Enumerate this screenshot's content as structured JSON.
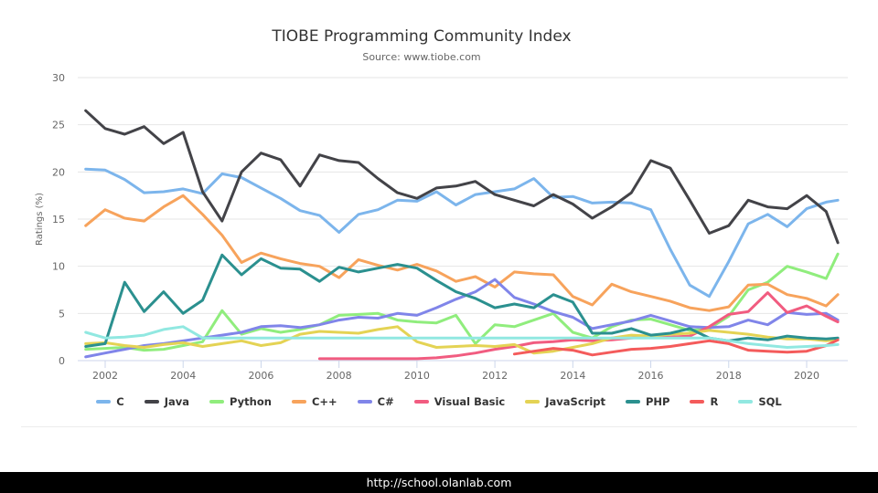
{
  "chart_data": {
    "type": "line",
    "title": "TIOBE Programming Community Index",
    "subtitle": "Source: www.tiobe.com",
    "xlabel": "",
    "ylabel": "Ratings (%)",
    "ylim": [
      0,
      30
    ],
    "xlim": [
      2001.5,
      2020.9
    ],
    "yticks": [
      "0",
      "5",
      "10",
      "15",
      "20",
      "25",
      "30"
    ],
    "xticks": [
      "2002",
      "2004",
      "2006",
      "2008",
      "2010",
      "2012",
      "2014",
      "2016",
      "2018",
      "2020"
    ],
    "grid": true,
    "legend_position": "bottom",
    "x": [
      2001.5,
      2002,
      2002.5,
      2003,
      2003.5,
      2004,
      2004.5,
      2005,
      2005.5,
      2006,
      2006.5,
      2007,
      2007.5,
      2008,
      2008.5,
      2009,
      2009.5,
      2010,
      2010.5,
      2011,
      2011.5,
      2012,
      2012.5,
      2013,
      2013.5,
      2014,
      2014.5,
      2015,
      2015.5,
      2016,
      2016.5,
      2017,
      2017.5,
      2018,
      2018.5,
      2019,
      2019.5,
      2020,
      2020.5,
      2020.8
    ],
    "series": [
      {
        "name": "C",
        "color": "#7cb5ec",
        "values": [
          20.3,
          20.2,
          19.2,
          17.8,
          17.9,
          18.2,
          17.7,
          19.8,
          19.4,
          18.3,
          17.2,
          15.9,
          15.4,
          13.6,
          15.5,
          16.0,
          17.0,
          16.9,
          17.9,
          16.5,
          17.6,
          17.9,
          18.2,
          19.3,
          17.3,
          17.4,
          16.7,
          16.8,
          16.7,
          16.0,
          11.8,
          8.0,
          6.8,
          10.5,
          14.5,
          15.5,
          14.2,
          16.1,
          16.8,
          17.0
        ]
      },
      {
        "name": "Java",
        "color": "#434348",
        "values": [
          26.5,
          24.6,
          24.0,
          24.8,
          23.0,
          24.2,
          17.9,
          14.8,
          20.0,
          22.0,
          21.3,
          18.5,
          21.8,
          21.2,
          21.0,
          19.3,
          17.8,
          17.2,
          18.3,
          18.5,
          19.0,
          17.6,
          17.0,
          16.4,
          17.6,
          16.6,
          15.1,
          16.3,
          17.8,
          21.2,
          20.4,
          17.0,
          13.5,
          14.3,
          17.0,
          16.3,
          16.1,
          17.5,
          15.8,
          12.5
        ]
      },
      {
        "name": "Python",
        "color": "#90ed7d",
        "values": [
          1.2,
          1.3,
          1.4,
          1.1,
          1.2,
          1.6,
          2.0,
          5.3,
          2.8,
          3.4,
          3.0,
          3.3,
          3.8,
          4.8,
          4.9,
          5.0,
          4.3,
          4.1,
          4.0,
          4.8,
          1.8,
          3.8,
          3.6,
          4.3,
          5.0,
          3.0,
          2.4,
          3.6,
          4.3,
          4.4,
          3.8,
          3.2,
          3.4,
          4.7,
          7.5,
          8.3,
          10.0,
          9.4,
          8.7,
          11.3
        ]
      },
      {
        "name": "C++",
        "color": "#f7a35c",
        "values": [
          14.3,
          16.0,
          15.1,
          14.8,
          16.3,
          17.5,
          15.5,
          13.3,
          10.4,
          11.4,
          10.8,
          10.3,
          10.0,
          8.8,
          10.7,
          10.1,
          9.6,
          10.2,
          9.5,
          8.4,
          8.9,
          7.8,
          9.4,
          9.2,
          9.1,
          6.8,
          5.9,
          8.1,
          7.3,
          6.8,
          6.3,
          5.6,
          5.3,
          5.7,
          8.0,
          8.1,
          7.0,
          6.6,
          5.8,
          7.0
        ]
      },
      {
        "name": "C#",
        "color": "#8085e9",
        "values": [
          0.4,
          0.8,
          1.2,
          1.6,
          1.8,
          2.1,
          2.4,
          2.7,
          3.0,
          3.6,
          3.7,
          3.5,
          3.8,
          4.3,
          4.6,
          4.5,
          5.0,
          4.8,
          5.6,
          6.5,
          7.3,
          8.6,
          6.7,
          6.0,
          5.2,
          4.6,
          3.4,
          3.8,
          4.2,
          4.8,
          4.2,
          3.6,
          3.5,
          3.6,
          4.3,
          3.8,
          5.1,
          4.9,
          5.0,
          4.3
        ]
      },
      {
        "name": "Visual Basic",
        "color": "#f15c80",
        "values": [
          null,
          null,
          null,
          null,
          null,
          null,
          null,
          null,
          null,
          null,
          null,
          null,
          0.2,
          0.2,
          0.2,
          0.2,
          0.2,
          0.2,
          0.3,
          0.5,
          0.8,
          1.2,
          1.5,
          1.9,
          2.0,
          2.2,
          2.1,
          2.2,
          2.4,
          2.6,
          2.5,
          2.6,
          3.6,
          4.9,
          5.2,
          7.2,
          5.1,
          5.8,
          4.7,
          4.1
        ]
      },
      {
        "name": "JavaScript",
        "color": "#e4d354",
        "values": [
          1.8,
          1.9,
          1.6,
          1.4,
          1.7,
          1.9,
          1.5,
          1.8,
          2.1,
          1.6,
          1.9,
          2.8,
          3.1,
          3.0,
          2.9,
          3.3,
          3.6,
          2.0,
          1.4,
          1.5,
          1.6,
          1.5,
          1.7,
          0.8,
          1.0,
          1.4,
          1.8,
          2.4,
          2.7,
          2.6,
          2.8,
          2.9,
          3.2,
          3.0,
          2.8,
          2.5,
          2.3,
          2.3,
          2.1,
          2.2
        ]
      },
      {
        "name": "PHP",
        "color": "#2b908f",
        "values": [
          1.5,
          1.8,
          8.3,
          5.2,
          7.3,
          5.0,
          6.4,
          11.2,
          9.1,
          10.8,
          9.8,
          9.7,
          8.4,
          9.9,
          9.4,
          9.8,
          10.2,
          9.8,
          8.5,
          7.3,
          6.6,
          5.6,
          6.0,
          5.6,
          7.0,
          6.2,
          2.9,
          2.9,
          3.4,
          2.7,
          2.9,
          3.4,
          2.4,
          2.1,
          2.4,
          2.2,
          2.6,
          2.4,
          2.3,
          2.4
        ]
      },
      {
        "name": "R",
        "color": "#f45b5b",
        "values": [
          null,
          null,
          null,
          null,
          null,
          null,
          null,
          null,
          null,
          null,
          null,
          null,
          null,
          null,
          null,
          null,
          null,
          null,
          null,
          null,
          null,
          null,
          0.7,
          1.0,
          1.3,
          1.1,
          0.6,
          0.9,
          1.2,
          1.3,
          1.5,
          1.8,
          2.1,
          1.8,
          1.1,
          1.0,
          0.9,
          1.0,
          1.6,
          2.2
        ]
      },
      {
        "name": "SQL",
        "color": "#91e8e1",
        "values": [
          3.0,
          2.4,
          2.5,
          2.7,
          3.3,
          3.6,
          2.4,
          2.4,
          2.4,
          2.4,
          2.4,
          2.4,
          2.4,
          2.4,
          2.4,
          2.4,
          2.4,
          2.4,
          2.4,
          2.4,
          2.4,
          2.4,
          2.4,
          2.4,
          2.4,
          2.4,
          2.4,
          2.4,
          2.4,
          2.4,
          2.4,
          2.4,
          2.4,
          2.1,
          1.8,
          1.6,
          1.4,
          1.5,
          1.6,
          1.7
        ]
      }
    ]
  },
  "footer": {
    "url": "http://school.olanlab.com"
  }
}
